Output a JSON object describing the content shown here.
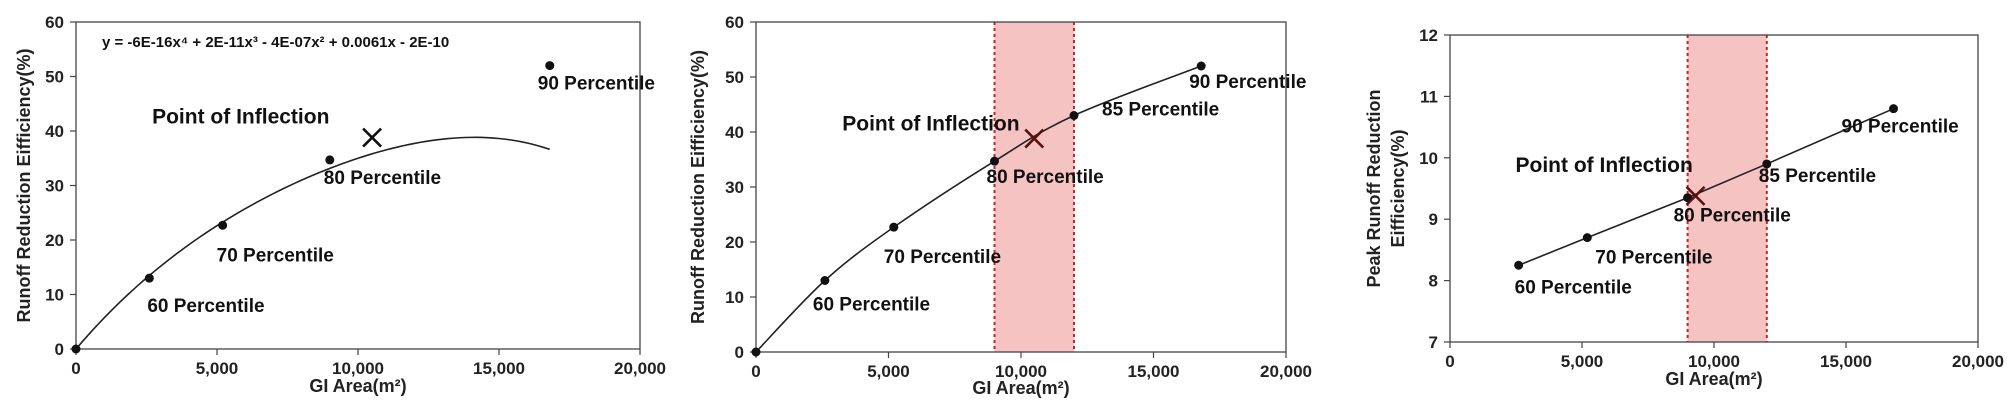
{
  "chart_data": [
    {
      "type": "line",
      "xlabel": "GI Area(m²)",
      "ylabel": "Runoff Reduction Eifficiency(%)",
      "xlim": [
        0,
        20000
      ],
      "ylim": [
        0,
        60
      ],
      "xticks": [
        0,
        5000,
        10000,
        15000,
        20000
      ],
      "xtick_labels": [
        "0",
        "5,000",
        "10,000",
        "15,000",
        "20,000"
      ],
      "yticks": [
        0,
        10,
        20,
        30,
        40,
        50,
        60
      ],
      "ytick_labels": [
        "0",
        "10",
        "20",
        "30",
        "40",
        "50",
        "60"
      ],
      "equation": "y = -6E-16x⁴ + 2E-11x³ - 4E-07x² + 0.0061x - 2E-10",
      "points": [
        {
          "x": 0,
          "y": 0,
          "label": ""
        },
        {
          "x": 2600,
          "y": 13,
          "label": "60 Percentile"
        },
        {
          "x": 5200,
          "y": 22.7,
          "label": "70 Percentile"
        },
        {
          "x": 9000,
          "y": 34.7,
          "label": "80 Percentile"
        },
        {
          "x": 16800,
          "y": 52,
          "label": "90 Percentile"
        }
      ],
      "inflection": {
        "x": 10500,
        "y": 38.8,
        "label": "Point of Inflection"
      },
      "band": null,
      "grid": false
    },
    {
      "type": "line",
      "xlabel": "GI Area(m²)",
      "ylabel": "Runoff Reduction Eifficiency(%)",
      "xlim": [
        0,
        20000
      ],
      "ylim": [
        0,
        60
      ],
      "xticks": [
        0,
        5000,
        10000,
        15000,
        20000
      ],
      "xtick_labels": [
        "0",
        "5,000",
        "10,000",
        "15,000",
        "20,000"
      ],
      "yticks": [
        0,
        10,
        20,
        30,
        40,
        50,
        60
      ],
      "ytick_labels": [
        "0",
        "10",
        "20",
        "30",
        "40",
        "50",
        "60"
      ],
      "equation": "",
      "points": [
        {
          "x": 0,
          "y": 0,
          "label": ""
        },
        {
          "x": 2600,
          "y": 13,
          "label": "60 Percentile"
        },
        {
          "x": 5200,
          "y": 22.7,
          "label": "70 Percentile"
        },
        {
          "x": 9000,
          "y": 34.7,
          "label": "80 Percentile"
        },
        {
          "x": 12000,
          "y": 43,
          "label": "85 Percentile"
        },
        {
          "x": 16800,
          "y": 52,
          "label": "90 Percentile"
        }
      ],
      "inflection": {
        "x": 10500,
        "y": 38.8,
        "label": "Point of Inflection"
      },
      "band": [
        9000,
        12000
      ],
      "grid": false
    },
    {
      "type": "line",
      "xlabel": "GI Area(m²)",
      "ylabel": "Peak Runoff Reduction Eifficiency(%)",
      "xlim": [
        0,
        20000
      ],
      "ylim": [
        7,
        12
      ],
      "xticks": [
        0,
        5000,
        10000,
        15000,
        20000
      ],
      "xtick_labels": [
        "0",
        "5,000",
        "10,000",
        "15,000",
        "20,000"
      ],
      "yticks": [
        7,
        8,
        9,
        10,
        11,
        12
      ],
      "ytick_labels": [
        "7",
        "8",
        "9",
        "10",
        "11",
        "12"
      ],
      "equation": "",
      "points": [
        {
          "x": 2600,
          "y": 8.25,
          "label": "60 Percentile"
        },
        {
          "x": 5200,
          "y": 8.7,
          "label": "70 Percentile"
        },
        {
          "x": 9000,
          "y": 9.35,
          "label": "80 Percentile"
        },
        {
          "x": 12000,
          "y": 9.9,
          "label": "85 Percentile"
        },
        {
          "x": 16800,
          "y": 10.8,
          "label": "90 Percentile"
        }
      ],
      "inflection": {
        "x": 9300,
        "y": 9.38,
        "label": "Point of Inflection"
      },
      "band": [
        9000,
        12000
      ],
      "grid": false
    }
  ]
}
